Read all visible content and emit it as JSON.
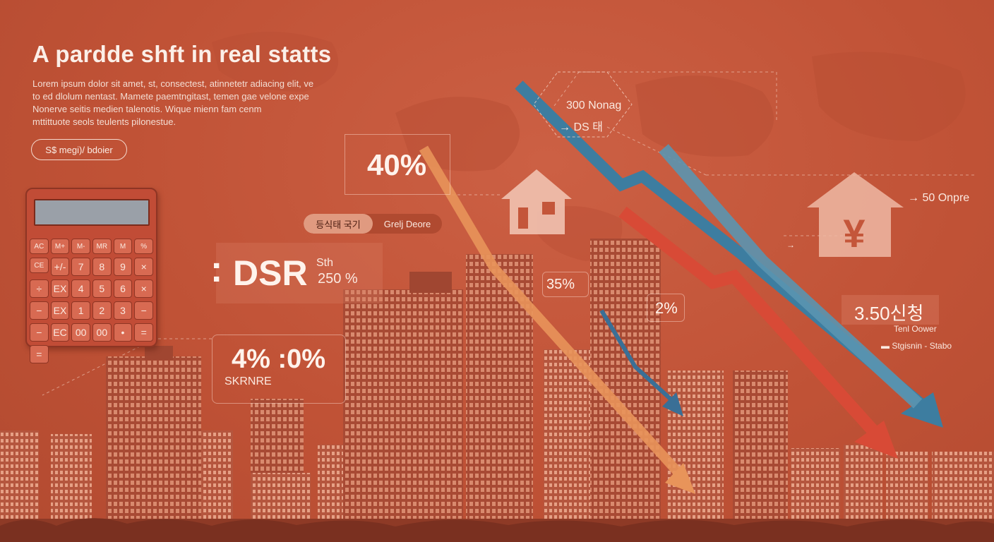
{
  "header": {
    "title": "A pardde shft in real statts",
    "body_lines": [
      "Lorem ipsum dolor sit amet, st, consectest, atinnetetr adiacing elit, ve",
      "to ed dlolum nentast. Mamete paemtngitast, temen gae velone expe",
      "Nonerve seitis medien talenotis. Wique mienn fam cenm",
      "mttittuote seols teulents pilonestue."
    ],
    "cta_label": "S$ megi)/ bdoier"
  },
  "calculator": {
    "keys": [
      "AC",
      "M+",
      "M-",
      "MR",
      "M",
      "%",
      "CE",
      "+/-",
      "7",
      "8",
      "9",
      "×",
      "÷",
      "EX",
      "4",
      "5",
      "6",
      "×",
      "−",
      "EX",
      "1",
      "2",
      "3",
      "−",
      "−",
      "EC",
      "00",
      "00",
      "•",
      "=",
      "="
    ]
  },
  "stats": {
    "forty": "40%",
    "dsr_label": "DSR",
    "dsr_sub": "Sth",
    "dsr_value": "250 %",
    "range_value": "4% :0%",
    "range_label": "SKRNRE",
    "thirtyfive": "35%",
    "two": "2%",
    "three_hundred": "300 Nonag",
    "ds_label": "DS 태",
    "fifty": "50 Onpre",
    "rate": "3.50신청",
    "rate_sub": "Tenl Oower",
    "rate_note": "Stgisnin - Stabo"
  },
  "toggle": {
    "option_active": "등식태 국기",
    "option_inactive": "Grelj Deore"
  },
  "colors": {
    "orange_arrow": "#e8945a",
    "blue_arrow": "#3d7da0",
    "red_arrow": "#d84a36",
    "light_blue_arrow": "#5a95b0"
  }
}
